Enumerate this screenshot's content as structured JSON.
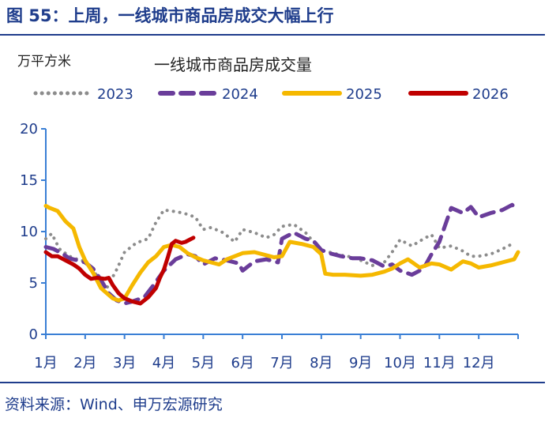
{
  "figure": {
    "title": "图 55：上周，一线城市商品房成交大幅上行",
    "source": "资料来源：Wind、申万宏源研究"
  },
  "chart_data": {
    "type": "line",
    "title": "一线城市商品房成交量",
    "unit": "万平方米",
    "ylim": [
      0,
      20
    ],
    "yticks": [
      0,
      5,
      10,
      15,
      20
    ],
    "x_axis": {
      "labels": [
        "1月",
        "2月",
        "3月",
        "4月",
        "5月",
        "6月",
        "7月",
        "8月",
        "9月",
        "10月",
        "11月",
        "12月"
      ],
      "range": [
        1,
        13
      ]
    },
    "grid": false,
    "legend_position": "top",
    "series": [
      {
        "name": "2023",
        "color": "#8c8c8c",
        "style": "dotted",
        "x": [
          1.0,
          1.15,
          1.35,
          1.6,
          1.8,
          2.0,
          2.2,
          2.4,
          2.55,
          2.8,
          3.0,
          3.3,
          3.6,
          3.8,
          4.0,
          4.2,
          4.5,
          4.8,
          5.0,
          5.2,
          5.5,
          5.8,
          6.0,
          6.3,
          6.6,
          6.8,
          7.0,
          7.3,
          7.6,
          7.8,
          8.0,
          8.2,
          8.5,
          8.8,
          9.0,
          9.3,
          9.6,
          9.8,
          10.0,
          10.3,
          10.6,
          10.8,
          11.0,
          11.3,
          11.6,
          11.8,
          12.0,
          12.3,
          12.6,
          12.9
        ],
        "y": [
          9.3,
          9.8,
          8.3,
          7.6,
          7.3,
          7.1,
          6.2,
          5.2,
          4.5,
          6.3,
          8.0,
          8.9,
          9.3,
          10.9,
          12.1,
          12.0,
          11.8,
          11.4,
          10.2,
          10.4,
          9.9,
          9.0,
          10.2,
          9.9,
          9.4,
          9.7,
          10.5,
          10.7,
          9.9,
          9.0,
          8.2,
          8.0,
          7.7,
          7.5,
          7.2,
          6.7,
          7.0,
          8.0,
          9.2,
          8.6,
          9.3,
          9.7,
          8.4,
          8.6,
          8.1,
          7.6,
          7.6,
          7.8,
          8.3,
          8.9
        ]
      },
      {
        "name": "2024",
        "color": "#6a3d9a",
        "style": "dashed",
        "x": [
          1.0,
          1.2,
          1.4,
          1.6,
          1.8,
          2.0,
          2.2,
          2.4,
          2.6,
          2.8,
          3.0,
          3.2,
          3.5,
          3.7,
          4.0,
          4.3,
          4.6,
          4.8,
          5.0,
          5.3,
          5.6,
          5.9,
          6.0,
          6.3,
          6.6,
          6.9,
          7.0,
          7.3,
          7.6,
          7.8,
          8.0,
          8.2,
          8.5,
          8.8,
          9.0,
          9.3,
          9.6,
          9.8,
          10.0,
          10.3,
          10.6,
          10.8,
          11.0,
          11.3,
          11.6,
          11.8,
          12.0,
          12.3,
          12.6,
          12.85,
          12.95
        ],
        "y": [
          8.5,
          8.3,
          7.9,
          7.4,
          7.2,
          7.0,
          6.4,
          5.3,
          4.0,
          3.3,
          3.0,
          3.2,
          3.6,
          4.6,
          6.2,
          7.3,
          7.8,
          7.6,
          6.8,
          7.4,
          7.2,
          6.9,
          6.2,
          7.1,
          7.3,
          7.0,
          9.3,
          9.9,
          9.3,
          9.1,
          8.2,
          7.9,
          7.6,
          7.4,
          7.4,
          7.2,
          6.6,
          6.8,
          6.2,
          5.8,
          6.4,
          7.8,
          9.0,
          12.3,
          11.8,
          12.4,
          11.4,
          11.8,
          12.1,
          12.6,
          12.2
        ]
      },
      {
        "name": "2025",
        "color": "#f5b800",
        "style": "solid",
        "x": [
          1.0,
          1.1,
          1.3,
          1.5,
          1.7,
          1.85,
          2.0,
          2.2,
          2.4,
          2.55,
          2.7,
          2.85,
          3.0,
          3.2,
          3.4,
          3.6,
          3.8,
          4.0,
          4.2,
          4.4,
          4.6,
          4.8,
          5.0,
          5.2,
          5.4,
          5.6,
          5.8,
          6.0,
          6.3,
          6.6,
          6.8,
          7.0,
          7.2,
          7.5,
          7.8,
          8.0,
          8.1,
          8.3,
          8.6,
          9.0,
          9.3,
          9.6,
          9.8,
          10.0,
          10.2,
          10.5,
          10.8,
          11.0,
          11.3,
          11.6,
          11.8,
          12.0,
          12.3,
          12.6,
          12.9,
          13.0
        ],
        "y": [
          12.5,
          12.3,
          12.0,
          11.0,
          10.3,
          8.5,
          7.2,
          6.0,
          4.5,
          4.0,
          3.5,
          3.3,
          3.5,
          4.8,
          6.0,
          7.0,
          7.6,
          8.5,
          8.7,
          8.5,
          7.9,
          7.5,
          7.2,
          7.0,
          6.8,
          7.3,
          7.6,
          7.9,
          8.0,
          7.7,
          7.5,
          7.6,
          9.0,
          8.8,
          8.5,
          7.8,
          5.9,
          5.8,
          5.8,
          5.7,
          5.8,
          6.1,
          6.4,
          6.9,
          7.3,
          6.5,
          6.9,
          6.8,
          6.3,
          7.1,
          6.9,
          6.5,
          6.7,
          7.0,
          7.3,
          8.0
        ]
      },
      {
        "name": "2026",
        "color": "#c00000",
        "style": "solid",
        "x": [
          1.0,
          1.15,
          1.3,
          1.5,
          1.7,
          1.85,
          2.0,
          2.15,
          2.3,
          2.5,
          2.6,
          2.7,
          2.85,
          3.0,
          3.2,
          3.4,
          3.6,
          3.8,
          3.9,
          4.0,
          4.1,
          4.2,
          4.3,
          4.45,
          4.55,
          4.65,
          4.75
        ],
        "y": [
          8.0,
          7.6,
          7.6,
          7.2,
          6.8,
          6.4,
          5.8,
          5.4,
          5.5,
          5.4,
          5.5,
          4.8,
          4.0,
          3.5,
          3.2,
          3.0,
          3.6,
          4.5,
          5.5,
          6.3,
          7.5,
          8.8,
          9.1,
          8.9,
          9.0,
          9.2,
          9.4
        ]
      }
    ]
  }
}
